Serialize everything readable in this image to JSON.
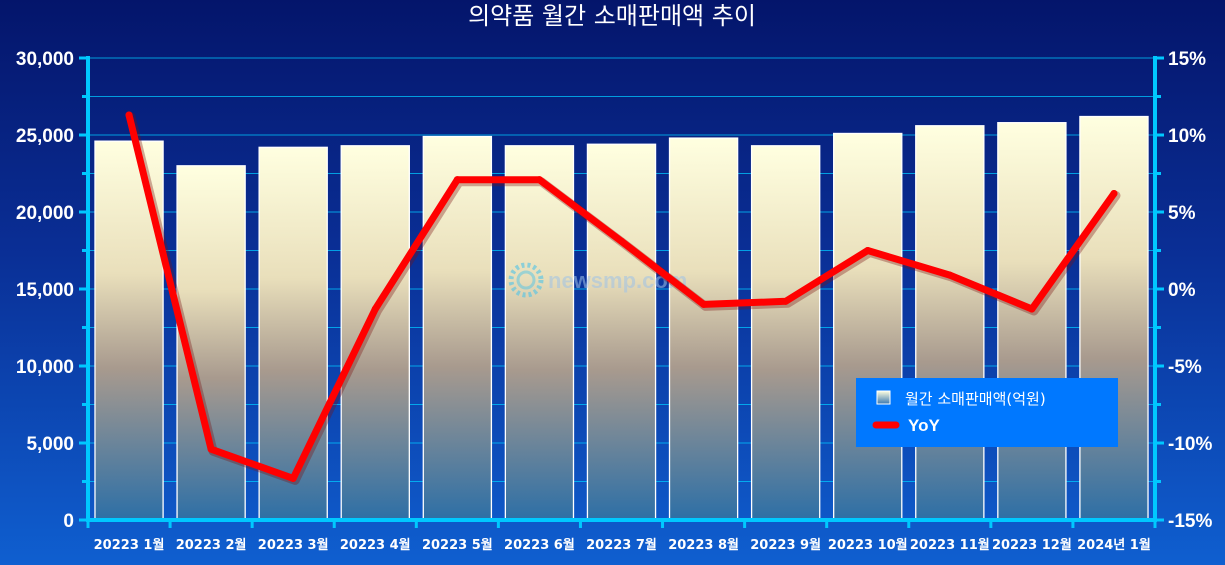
{
  "chart_data": {
    "type": "bar",
    "title": "의약품 월간 소매판매액 추이",
    "categories": [
      "20223 1월",
      "20223 2월",
      "20223 3월",
      "20223 4월",
      "20223 5월",
      "20223 6월",
      "20223 7월",
      "20223 8월",
      "20223 9월",
      "20223 10월",
      "20223 11월",
      "20223 12월",
      "2024년 1월"
    ],
    "series": [
      {
        "name": "월간 소매판매액(억원)",
        "type": "bar",
        "axis": "left",
        "values": [
          24600,
          23000,
          24200,
          24300,
          24900,
          24300,
          24400,
          24800,
          24300,
          25100,
          25600,
          25800,
          26200
        ]
      },
      {
        "name": "YoY",
        "type": "line",
        "axis": "right",
        "values": [
          11.3,
          -10.4,
          -12.3,
          -1.3,
          7.1,
          7.1,
          3.1,
          -1.0,
          -0.8,
          2.5,
          0.9,
          -1.3,
          6.2
        ]
      }
    ],
    "ylim_left": [
      0,
      30000
    ],
    "yticks_left": [
      "0",
      "5,000",
      "10,000",
      "15,000",
      "20,000",
      "25,000",
      "30,000"
    ],
    "ylim_right": [
      -15,
      15
    ],
    "yticks_right": [
      "-15%",
      "-10%",
      "-5%",
      "0%",
      "5%",
      "10%",
      "15%"
    ],
    "grid": true,
    "legend_position": "bottom-right",
    "colors": {
      "bar_top": "#ffffe0",
      "bar_bottom": "#2d6fa6",
      "line": "#ff0000",
      "axis": "#00c8ff",
      "legend_bg": "#0078ff"
    }
  },
  "watermark": "newsmp.com"
}
